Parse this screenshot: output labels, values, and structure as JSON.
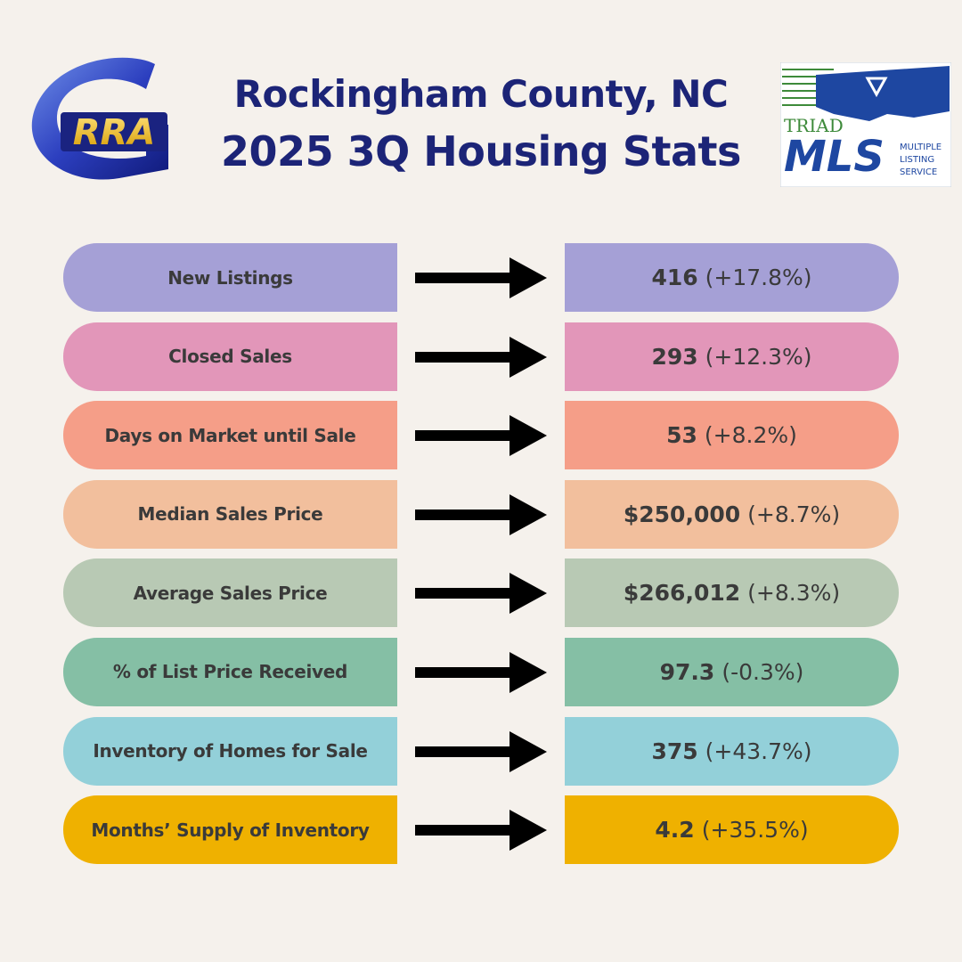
{
  "header": {
    "title_line1": "Rockingham County, NC",
    "title_line2": "2025 3Q Housing Stats",
    "left_logo_text": "RRA",
    "right_logo_top": "TRIAD",
    "right_logo_main": "MLS",
    "right_logo_sub1": "MULTIPLE",
    "right_logo_sub2": "LISTING",
    "right_logo_sub3": "SERVICE"
  },
  "colors": {
    "background": "#f5f1ec",
    "title": "#1c2477"
  },
  "stats": [
    {
      "label": "New Listings",
      "value": "416",
      "change": "(+17.8%)",
      "color": "#a5a0d6"
    },
    {
      "label": "Closed Sales",
      "value": "293",
      "change": "(+12.3%)",
      "color": "#e296b9"
    },
    {
      "label": "Days on Market until Sale",
      "value": "53",
      "change": "(+8.2%)",
      "color": "#f59e88"
    },
    {
      "label": "Median Sales Price",
      "value": "$250,000",
      "change": "(+8.7%)",
      "color": "#f2bf9d"
    },
    {
      "label": "Average Sales Price",
      "value": "$266,012",
      "change": "(+8.3%)",
      "color": "#b8c9b4"
    },
    {
      "label": "% of List Price Received",
      "value": "97.3",
      "change": "(-0.3%)",
      "color": "#85bfa5"
    },
    {
      "label": "Inventory of Homes for Sale",
      "value": "375",
      "change": "(+43.7%)",
      "color": "#93d0d9"
    },
    {
      "label": "Months’ Supply of Inventory",
      "value": "4.2",
      "change": "(+35.5%)",
      "color": "#efb100"
    }
  ]
}
